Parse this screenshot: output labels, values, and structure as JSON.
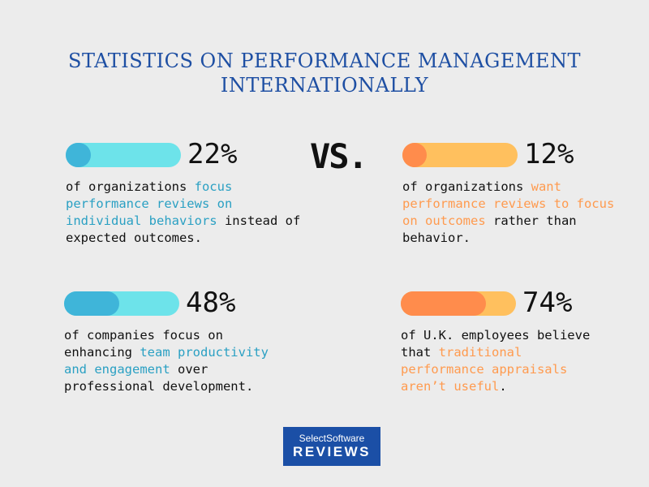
{
  "title": {
    "line1": "STATISTICS ON PERFORMANCE MANAGEMENT",
    "line2": "INTERNATIONALLY"
  },
  "vs_label": "VS.",
  "colors": {
    "title": "#1e4fa3",
    "blue_fill": "#3fb5d9",
    "blue_track": "#6de3ea",
    "orange_fill": "#ff8c4c",
    "orange_track": "#ffc05e"
  },
  "stats": [
    {
      "percent_label": "22%",
      "value": 22,
      "theme": "blue",
      "desc_before": "of organizations ",
      "desc_highlight": "focus performance reviews on individual behaviors",
      "desc_after": " instead of expected outcomes."
    },
    {
      "percent_label": "12%",
      "value": 12,
      "theme": "orange",
      "desc_before": "of organizations ",
      "desc_highlight": "want performance reviews to focus on outcomes",
      "desc_after": " rather than behavior."
    },
    {
      "percent_label": "48%",
      "value": 48,
      "theme": "blue",
      "desc_before": "of companies focus on enhancing ",
      "desc_highlight": "team productivity and engagement",
      "desc_after": " over professional development."
    },
    {
      "percent_label": "74%",
      "value": 74,
      "theme": "orange",
      "desc_before": "of U.K. employees believe that ",
      "desc_highlight": "traditional performance appraisals aren’t useful",
      "desc_after": "."
    }
  ],
  "logo": {
    "top": "SelectSoftware",
    "bottom": "REVIEWS"
  }
}
